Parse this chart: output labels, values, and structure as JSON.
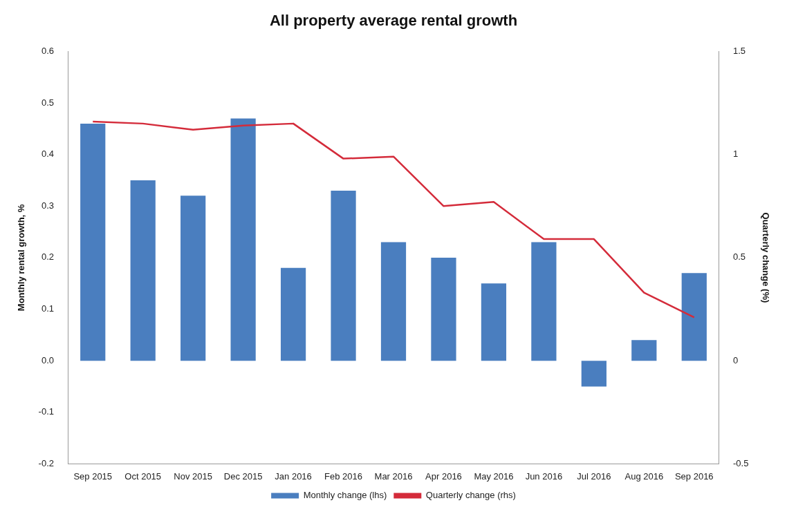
{
  "chart_data": {
    "type": "bar",
    "title": "All property average rental growth",
    "categories": [
      "Sep 2015",
      "Oct 2015",
      "Nov 2015",
      "Dec 2015",
      "Jan 2016",
      "Feb 2016",
      "Mar 2016",
      "Apr 2016",
      "May 2016",
      "Jun 2016",
      "Jul 2016",
      "Aug 2016",
      "Sep 2016"
    ],
    "series": [
      {
        "name": "Monthly change (lhs)",
        "color": "#4a7ebf",
        "values": [
          0.46,
          0.35,
          0.32,
          0.47,
          0.18,
          0.33,
          0.23,
          0.2,
          0.15,
          0.23,
          -0.05,
          0.04,
          0.17
        ]
      },
      {
        "name": "Quarterly change (rhs)",
        "type": "line",
        "axis": "y2",
        "color": "#d42b3a",
        "marker": "none",
        "values": [
          1.16,
          1.15,
          1.12,
          1.14,
          1.15,
          0.98,
          0.99,
          0.75,
          0.77,
          0.59,
          0.59,
          0.33,
          0.21
        ]
      }
    ],
    "ylabel": "Monthly rental growth, %",
    "y2label": "Quarterly change (%)",
    "ylim": [
      -0.2,
      0.6
    ],
    "yticks": [
      -0.2,
      -0.1,
      {
        "value": 0,
        "label": "0.0"
      },
      0.1,
      0.2,
      0.3,
      0.4,
      0.5,
      0.6
    ],
    "y2lim": [
      -0.5,
      1.5
    ],
    "y2ticks": [
      -0.5,
      0,
      0.5,
      1,
      1.5
    ],
    "grid": false,
    "legend": "bottom"
  }
}
